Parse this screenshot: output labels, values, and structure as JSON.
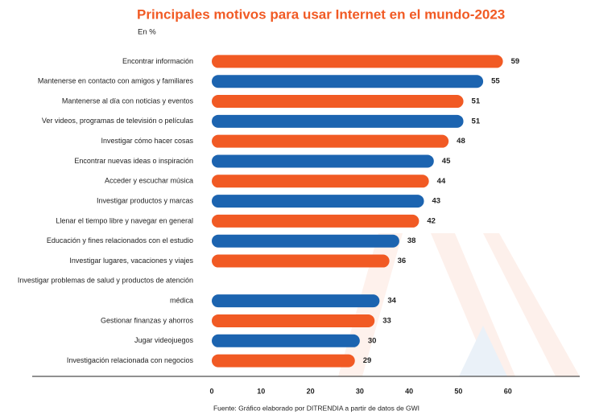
{
  "chart_data": {
    "type": "bar",
    "orientation": "horizontal",
    "title": "Principales motivos para usar Internet en el mundo-2023",
    "subtitle": "En %",
    "source": "Fuente: Gráfico elaborado por DITRENDIA a partir de datos de GWI",
    "categories": [
      "Encontrar información",
      "Mantenerse en contacto con amigos y familiares",
      "Mantenerse al día con noticias y eventos",
      "Ver videos, programas de televisión o películas",
      "Investigar cómo hacer cosas",
      "Encontrar nuevas ideas o inspiración",
      "Acceder y escuchar música",
      "Investigar productos y marcas",
      "Llenar el tiempo libre y navegar en general",
      "Educación y fines relacionados con el estudio",
      "Investigar lugares, vacaciones y viajes",
      "Investigar problemas de salud y productos de atención",
      "médica",
      "Gestionar finanzas y ahorros",
      "Jugar videojuegos",
      "Investigación relacionada con negocios"
    ],
    "values": [
      59,
      55,
      51,
      51,
      48,
      45,
      44,
      43,
      42,
      38,
      36,
      null,
      34,
      33,
      30,
      29
    ],
    "colors": [
      "#f15a24",
      "#1c64b0",
      "#f15a24",
      "#1c64b0",
      "#f15a24",
      "#1c64b0",
      "#f15a24",
      "#1c64b0",
      "#f15a24",
      "#1c64b0",
      "#f15a24",
      null,
      "#1c64b0",
      "#f15a24",
      "#1c64b0",
      "#f15a24"
    ],
    "xlim": [
      0,
      70
    ],
    "xticks": [
      0,
      10,
      20,
      30,
      40,
      50,
      60
    ]
  }
}
